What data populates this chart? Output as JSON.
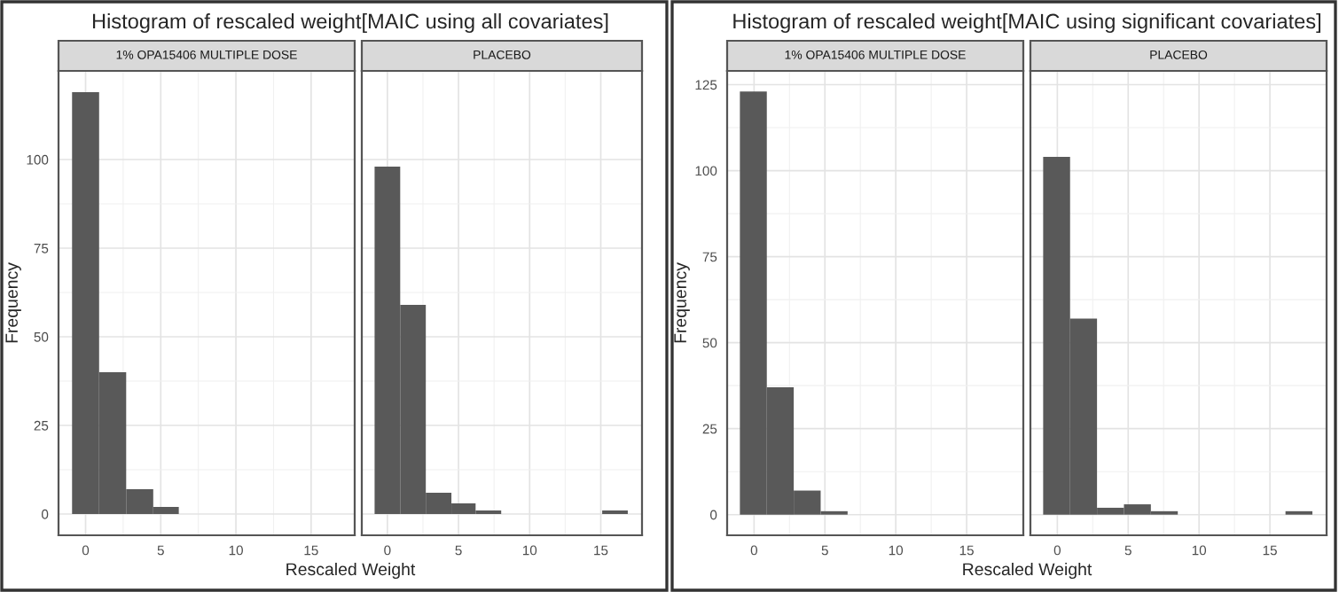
{
  "chart_data": [
    {
      "type": "histogram",
      "title": "Histogram of rescaled weight[MAIC using all covariates]",
      "subtitle": "1% OPA15406 MULTIPLE DOSE",
      "xlabel": "Rescaled Weight",
      "ylabel": "Frequency",
      "bins": [
        -0.9,
        0.9,
        2.7,
        4.5,
        6.2
      ],
      "values": [
        119,
        40,
        7,
        2
      ],
      "color": "#595959",
      "xlim": [
        -1.8,
        17.9
      ],
      "xticks": [
        0,
        5,
        10,
        15
      ],
      "ylim": [
        -6,
        125
      ],
      "yticks": [
        0,
        25,
        50,
        75,
        100
      ],
      "grid": true
    },
    {
      "type": "histogram",
      "subtitle": "PLACEBO",
      "bins": [
        -0.9,
        0.9,
        2.7,
        4.5,
        6.2,
        8.0,
        15.1,
        16.9
      ],
      "values": [
        98,
        59,
        6,
        3,
        1,
        0,
        1
      ],
      "color": "#595959",
      "xlim": [
        -1.8,
        17.9
      ],
      "xticks": [
        0,
        5,
        10,
        15
      ],
      "ylim": [
        -6,
        125
      ],
      "yticks": [
        0,
        25,
        50,
        75,
        100
      ],
      "grid": true,
      "tick_labels": "x"
    },
    {
      "type": "histogram",
      "title": "Histogram of rescaled weight[MAIC using significant covariates]",
      "subtitle": "1% OPA15406 MULTIPLE DOSE",
      "xlabel": "Rescaled Weight",
      "ylabel": "Frequency",
      "bins": [
        -1.0,
        0.9,
        2.8,
        4.7,
        6.6
      ],
      "values": [
        123,
        37,
        7,
        1
      ],
      "color": "#595959",
      "xlim": [
        -1.9,
        19.0
      ],
      "xticks": [
        0,
        5,
        10,
        15
      ],
      "ylim": [
        -6,
        129
      ],
      "yticks": [
        0,
        25,
        50,
        75,
        100,
        125
      ],
      "grid": true
    },
    {
      "type": "histogram",
      "subtitle": "PLACEBO",
      "bins": [
        -1.0,
        0.9,
        2.8,
        4.7,
        6.6,
        8.5,
        16.1,
        18.0
      ],
      "values": [
        104,
        57,
        2,
        3,
        1,
        0,
        1
      ],
      "color": "#595959",
      "xlim": [
        -1.9,
        19.0
      ],
      "xticks": [
        0,
        5,
        10,
        15
      ],
      "ylim": [
        -6,
        129
      ],
      "yticks": [
        0,
        25,
        50,
        75,
        100,
        125
      ],
      "grid": true,
      "tick_labels": "x"
    }
  ]
}
